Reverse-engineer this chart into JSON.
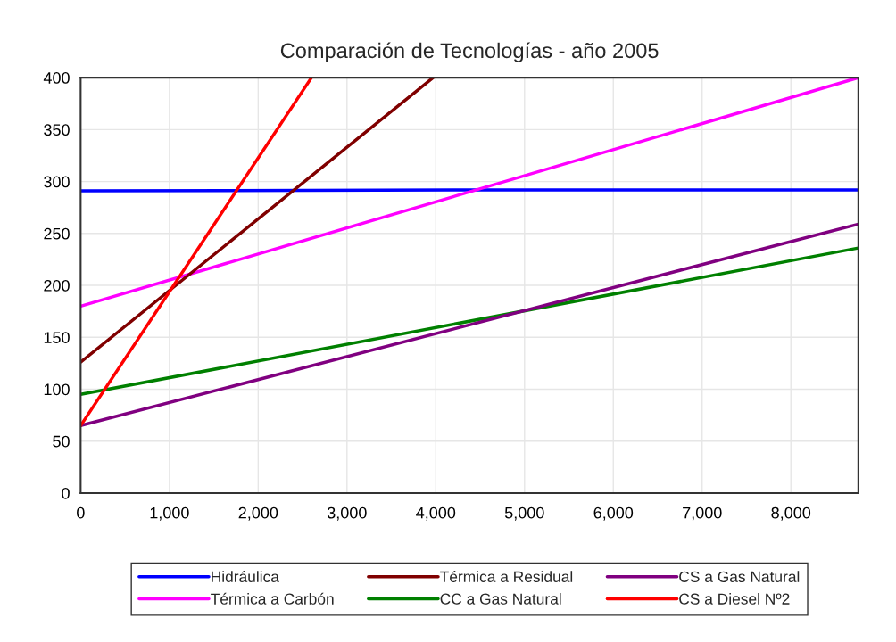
{
  "chart_data": {
    "type": "line",
    "title": "Comparación de Tecnologías - año 2005",
    "xlim": [
      0,
      8760
    ],
    "xticks": [
      {
        "value": 0,
        "label": "0"
      },
      {
        "value": 1000,
        "label": "1,000"
      },
      {
        "value": 2000,
        "label": "2,000"
      },
      {
        "value": 3000,
        "label": "3,000"
      },
      {
        "value": 4000,
        "label": "4,000"
      },
      {
        "value": 5000,
        "label": "5,000"
      },
      {
        "value": 6000,
        "label": "6,000"
      },
      {
        "value": 7000,
        "label": "7,000"
      },
      {
        "value": 8000,
        "label": "8,000"
      }
    ],
    "ylim": [
      0,
      400
    ],
    "yticks": [
      0,
      50,
      100,
      150,
      200,
      250,
      300,
      350,
      400
    ],
    "grid": true,
    "legend": "bottom",
    "marker": "none",
    "line_style": "solid",
    "series": [
      {
        "name": "Hidráulica",
        "color": "#0000ff",
        "x": [
          0,
          5000,
          8760
        ],
        "values": [
          291,
          292,
          292
        ]
      },
      {
        "name": "Térmica a Carbón",
        "color": "#ff00ff",
        "x": [
          0,
          8760
        ],
        "values": [
          180,
          400
        ]
      },
      {
        "name": "Térmica a Residual",
        "color": "#800000",
        "x": [
          0,
          3970
        ],
        "values": [
          126,
          400
        ]
      },
      {
        "name": "CC a Gas Natural",
        "color": "#008000",
        "x": [
          0,
          8760
        ],
        "values": [
          95,
          236
        ]
      },
      {
        "name": "CS a Gas Natural",
        "color": "#800080",
        "x": [
          0,
          8760
        ],
        "values": [
          65,
          259
        ]
      },
      {
        "name": "CS a Diesel Nº2",
        "color": "#ff0000",
        "x": [
          0,
          2600
        ],
        "values": [
          65,
          400
        ]
      }
    ]
  }
}
